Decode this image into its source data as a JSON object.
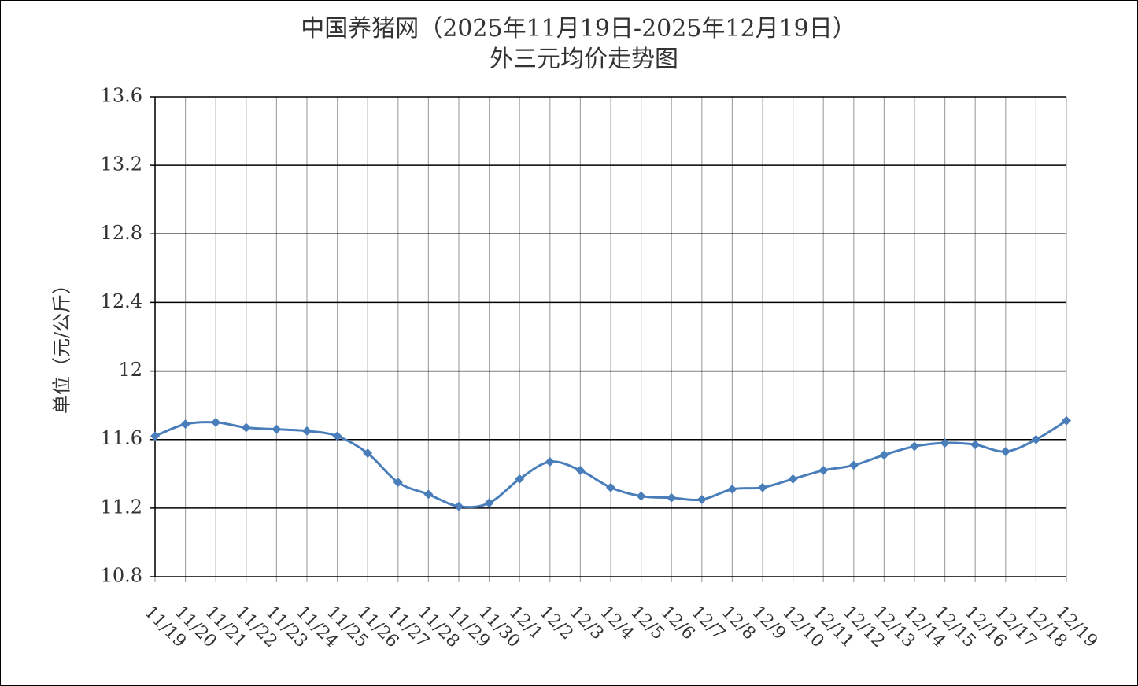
{
  "chart_data": {
    "type": "line",
    "title": "中国养猪网（2025年11月19日-2025年12月19日）",
    "subtitle": "外三元均价走势图",
    "y_label": "单位（元/公斤）",
    "categories": [
      "11/19",
      "11/20",
      "11/21",
      "11/22",
      "11/23",
      "11/24",
      "11/25",
      "11/26",
      "11/27",
      "11/28",
      "11/29",
      "11/30",
      "12/1",
      "12/2",
      "12/3",
      "12/4",
      "12/5",
      "12/6",
      "12/7",
      "12/8",
      "12/9",
      "12/10",
      "12/11",
      "12/12",
      "12/13",
      "12/14",
      "12/15",
      "12/16",
      "12/17",
      "12/18",
      "12/19"
    ],
    "values": [
      11.62,
      11.69,
      11.7,
      11.67,
      11.66,
      11.65,
      11.62,
      11.52,
      11.35,
      11.28,
      11.21,
      11.23,
      11.37,
      11.47,
      11.42,
      11.32,
      11.27,
      11.26,
      11.25,
      11.31,
      11.32,
      11.37,
      11.42,
      11.45,
      11.51,
      11.56,
      11.58,
      11.57,
      11.53,
      11.6,
      11.71
    ],
    "color": "#4a7ebb",
    "ylim": [
      10.8,
      13.6
    ],
    "yticks": [
      10.8,
      11.2,
      11.6,
      12,
      12.4,
      12.8,
      13.2,
      13.6
    ],
    "grid": true
  }
}
